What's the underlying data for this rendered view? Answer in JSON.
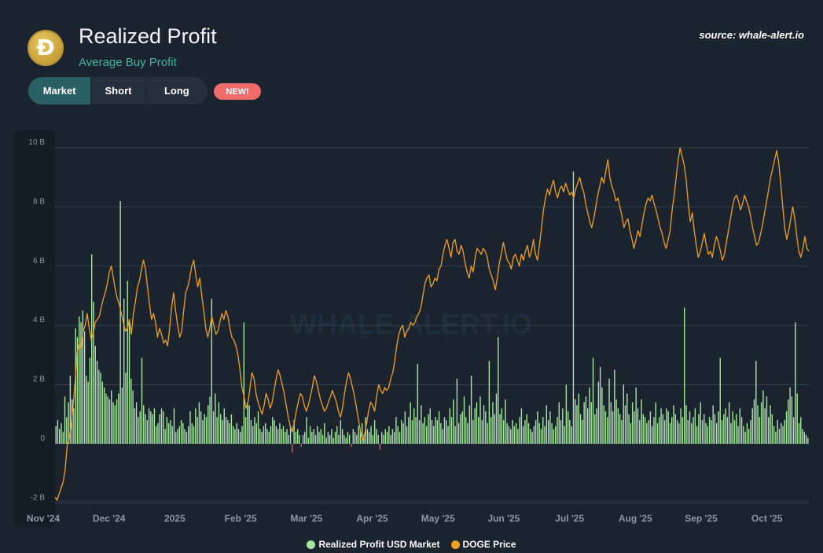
{
  "header": {
    "title": "Realized Profit",
    "subtitle": "Average Buy Profit",
    "source": "source: whale-alert.io",
    "logo_glyph": "Ð"
  },
  "tabs": [
    {
      "label": "Market",
      "active": true
    },
    {
      "label": "Short",
      "active": false
    },
    {
      "label": "Long",
      "active": false
    }
  ],
  "badge": "NEW!",
  "watermark": "WHALE-ALERT.IO",
  "colors": {
    "profit_bar": "#a6e6a1",
    "loss_bar": "#e05563",
    "price_line": "#f0a020",
    "grid": "#34404c",
    "axis_text": "#8d98a5"
  },
  "chart_data": {
    "type": "bar",
    "yticks": [
      "-2 B",
      "0",
      "2 B",
      "4 B",
      "6 B",
      "8 B",
      "10 B"
    ],
    "ylim": [
      -2,
      10
    ],
    "xlabels": [
      "Nov '24",
      "Dec '24",
      "2025",
      "Feb '25",
      "Mar '25",
      "Apr '25",
      "May '25",
      "Jun '25",
      "Jul '25",
      "Aug '25",
      "Sep '25",
      "Oct '25"
    ],
    "series": [
      {
        "name": "Realized Profit USD Market",
        "unit": "B USD",
        "values": [
          0.6,
          0.8,
          0.5,
          0.7,
          0.4,
          1.6,
          0.9,
          1.4,
          2.3,
          1.5,
          1.2,
          3.9,
          3.6,
          4.3,
          4.1,
          4.5,
          3.8,
          2.3,
          2.1,
          2.9,
          6.4,
          4.8,
          3.3,
          2.8,
          2.5,
          2.4,
          2.1,
          1.9,
          1.7,
          1.6,
          1.5,
          1.8,
          1.4,
          1.3,
          1.5,
          1.7,
          8.2,
          1.9,
          4.9,
          2.4,
          5.5,
          4.2,
          2.2,
          1.8,
          1.2,
          1.4,
          0.9,
          1.1,
          2.9,
          1.3,
          1.0,
          0.8,
          1.2,
          1.1,
          1.0,
          1.2,
          0.6,
          0.7,
          1.0,
          1.2,
          1.1,
          0.5,
          0.9,
          0.7,
          0.8,
          0.6,
          1.2,
          0.4,
          0.5,
          0.6,
          0.8,
          0.7,
          0.5,
          0.4,
          0.6,
          1.1,
          0.7,
          0.6,
          1.2,
          0.9,
          1.4,
          1.1,
          0.8,
          1.0,
          0.9,
          1.3,
          1.6,
          4.9,
          1.1,
          1.7,
          0.9,
          1.4,
          1.0,
          0.8,
          1.2,
          0.9,
          0.8,
          0.7,
          1.0,
          0.6,
          0.5,
          0.7,
          0.5,
          0.4,
          0.6,
          4.1,
          0.9,
          1.4,
          1.3,
          0.8,
          0.6,
          0.9,
          0.7,
          1.1,
          0.5,
          0.4,
          0.6,
          0.7,
          0.5,
          0.4,
          0.6,
          0.9,
          0.8,
          0.6,
          0.5,
          0.7,
          0.5,
          0.6,
          0.4,
          0.5,
          0.3,
          0.6,
          -0.3,
          0.8,
          0.4,
          0.5,
          0.3,
          -0.1,
          0.3,
          0.4,
          0.9,
          0.2,
          0.6,
          0.4,
          0.5,
          0.3,
          0.6,
          0.4,
          0.5,
          0.3,
          0.7,
          0.2,
          0.4,
          0.3,
          0.5,
          0.2,
          0.4,
          0.6,
          0.3,
          0.8,
          0.5,
          0.3,
          0.2,
          0.4,
          0.3,
          -0.1,
          0.5,
          0.4,
          0.3,
          0.6,
          0.4,
          0.7,
          0.3,
          0.9,
          0.5,
          0.4,
          0.6,
          0.3,
          0.8,
          0.5,
          0.3,
          -0.2,
          0.4,
          0.3,
          0.5,
          0.4,
          0.6,
          0.3,
          0.5,
          0.4,
          0.9,
          0.6,
          0.4,
          0.8,
          0.7,
          1.1,
          0.6,
          0.9,
          1.4,
          0.8,
          1.2,
          0.9,
          2.7,
          0.8,
          1.3,
          0.7,
          0.9,
          0.6,
          1.0,
          1.2,
          0.8,
          0.6,
          0.9,
          0.8,
          1.1,
          0.7,
          0.5,
          0.9,
          0.8,
          0.6,
          1.2,
          0.9,
          1.5,
          0.6,
          2.2,
          0.7,
          1.0,
          1.1,
          1.6,
          0.9,
          0.7,
          1.3,
          2.3,
          0.8,
          1.2,
          1.4,
          0.9,
          1.6,
          0.8,
          1.3,
          1.1,
          0.7,
          2.8,
          0.9,
          1.4,
          1.0,
          1.7,
          3.6,
          1.0,
          1.2,
          0.8,
          1.5,
          0.7,
          0.6,
          0.5,
          0.8,
          0.6,
          0.7,
          0.5,
          0.9,
          1.2,
          0.6,
          0.8,
          1.0,
          0.7,
          0.5,
          0.4,
          0.6,
          0.8,
          1.1,
          0.7,
          0.5,
          0.9,
          0.6,
          1.3,
          0.8,
          1.1,
          0.7,
          0.5,
          0.6,
          0.9,
          1.4,
          0.8,
          1.2,
          0.6,
          2.0,
          1.1,
          0.8,
          0.6,
          9.2,
          1.5,
          1.3,
          1.7,
          1.0,
          0.8,
          1.4,
          1.6,
          1.2,
          1.9,
          1.4,
          2.9,
          1.0,
          1.2,
          2.1,
          2.6,
          1.9,
          1.3,
          1.1,
          0.9,
          2.2,
          1.4,
          1.1,
          2.5,
          1.5,
          1.2,
          1.0,
          0.8,
          2.0,
          1.3,
          1.7,
          1.0,
          0.7,
          1.4,
          1.1,
          1.9,
          1.2,
          0.8,
          1.5,
          1.0,
          0.9,
          0.7,
          0.8,
          1.1,
          0.6,
          0.9,
          1.4,
          0.7,
          0.9,
          1.2,
          1.0,
          0.8,
          1.2,
          1.1,
          0.7,
          0.9,
          1.3,
          1.0,
          0.8,
          0.7,
          1.2,
          0.9,
          4.6,
          1.3,
          0.8,
          1.1,
          0.7,
          0.9,
          1.2,
          0.6,
          1.0,
          1.4,
          0.8,
          1.0,
          0.7,
          0.6,
          0.9,
          0.8,
          1.3,
          1.0,
          0.7,
          1.1,
          2.9,
          0.8,
          1.0,
          1.2,
          0.9,
          1.4,
          0.7,
          1.1,
          0.8,
          1.0,
          0.6,
          1.2,
          0.9,
          0.6,
          0.4,
          0.7,
          0.5,
          0.8,
          1.2,
          1.5,
          2.8,
          1.3,
          0.9,
          1.4,
          1.8,
          1.2,
          1.6,
          0.9,
          1.3,
          1.0,
          0.6,
          0.4,
          0.8,
          0.5,
          0.7,
          0.6,
          0.8,
          1.1,
          1.5,
          1.9,
          1.6,
          0.9,
          4.1,
          1.7,
          0.7,
          0.9,
          0.5,
          0.4,
          0.3,
          0.2
        ]
      },
      {
        "name": "DOGE Price",
        "values": [
          -1.8,
          -1.9,
          -1.7,
          -1.5,
          -1.3,
          -0.9,
          -0.1,
          0.2,
          0.6,
          1.3,
          2.1,
          3.1,
          3.4,
          3.2,
          3.8,
          4.0,
          4.4,
          3.9,
          3.5,
          3.7,
          4.1,
          4.2,
          4.3,
          4.6,
          4.9,
          5.1,
          5.4,
          5.8,
          6.0,
          5.6,
          5.2,
          4.9,
          4.7,
          4.4,
          4.1,
          3.8,
          3.9,
          4.2,
          3.7,
          4.4,
          4.8,
          5.3,
          5.5,
          5.9,
          6.2,
          5.9,
          5.3,
          4.7,
          4.2,
          4.4,
          4.1,
          3.6,
          3.9,
          3.7,
          3.4,
          3.5,
          3.3,
          3.9,
          4.6,
          5.1,
          4.5,
          4.0,
          3.6,
          3.8,
          4.5,
          5.1,
          5.3,
          5.6,
          6.0,
          6.2,
          5.7,
          5.3,
          5.6,
          5.0,
          4.5,
          3.9,
          3.6,
          3.9,
          4.3,
          4.0,
          3.7,
          3.8,
          4.1,
          4.4,
          4.2,
          4.5,
          4.3,
          3.9,
          3.6,
          3.5,
          3.3,
          3.0,
          2.5,
          1.9,
          1.6,
          1.2,
          1.4,
          1.9,
          2.4,
          2.2,
          1.7,
          1.4,
          1.2,
          1.0,
          1.3,
          1.7,
          1.5,
          1.2,
          1.4,
          1.8,
          2.2,
          2.5,
          2.3,
          2.0,
          1.7,
          1.3,
          0.9,
          0.6,
          0.4,
          0.7,
          1.1,
          1.4,
          1.7,
          1.6,
          1.3,
          1.1,
          1.3,
          1.6,
          1.9,
          2.3,
          2.1,
          1.8,
          1.5,
          1.3,
          1.1,
          1.2,
          1.4,
          1.6,
          1.8,
          1.6,
          1.4,
          1.1,
          0.9,
          1.2,
          1.7,
          2.1,
          2.4,
          2.2,
          1.9,
          1.6,
          1.2,
          0.8,
          0.4,
          0.1,
          0.3,
          0.7,
          1.1,
          1.4,
          1.3,
          1.1,
          1.6,
          2.0,
          1.8,
          1.7,
          1.9,
          1.8,
          1.9,
          2.2,
          2.4,
          2.8,
          3.3,
          3.7,
          3.9,
          4.0,
          3.6,
          3.8,
          3.9,
          4.1,
          4.0,
          4.1,
          4.3,
          4.4,
          4.6,
          5.0,
          5.4,
          5.6,
          5.7,
          5.3,
          5.4,
          5.6,
          5.5,
          5.9,
          6.0,
          6.4,
          6.7,
          6.9,
          6.6,
          6.3,
          6.8,
          6.9,
          6.5,
          6.4,
          6.7,
          6.5,
          6.1,
          5.8,
          5.6,
          6.0,
          5.8,
          6.3,
          6.6,
          6.5,
          6.4,
          6.6,
          6.5,
          6.3,
          5.9,
          5.7,
          5.5,
          5.2,
          5.6,
          6.1,
          6.4,
          6.8,
          6.5,
          6.2,
          6.1,
          5.9,
          6.3,
          6.4,
          6.2,
          6.0,
          6.4,
          6.2,
          6.5,
          6.7,
          6.3,
          6.5,
          6.9,
          6.4,
          6.2,
          6.7,
          7.3,
          7.9,
          8.3,
          8.6,
          8.4,
          8.7,
          8.9,
          8.5,
          8.3,
          8.6,
          8.7,
          8.5,
          8.8,
          8.6,
          8.4,
          8.5,
          8.3,
          8.6,
          8.8,
          9.0,
          8.7,
          8.5,
          8.1,
          7.8,
          7.5,
          7.3,
          7.6,
          8.0,
          8.4,
          8.7,
          9.0,
          8.8,
          9.2,
          9.6,
          9.0,
          8.7,
          8.5,
          8.2,
          8.3,
          8.0,
          7.7,
          7.3,
          7.5,
          7.6,
          7.2,
          6.9,
          6.6,
          6.9,
          7.2,
          7.0,
          7.4,
          7.8,
          8.1,
          8.3,
          8.2,
          8.4,
          8.1,
          7.9,
          7.6,
          7.3,
          7.1,
          6.8,
          6.6,
          6.9,
          7.2,
          7.9,
          8.4,
          9.0,
          9.6,
          10.0,
          9.7,
          9.4,
          8.9,
          8.1,
          7.5,
          7.8,
          7.2,
          6.7,
          6.3,
          6.5,
          6.8,
          7.1,
          6.7,
          6.4,
          6.5,
          6.3,
          6.7,
          7.0,
          6.8,
          6.5,
          6.2,
          6.4,
          6.8,
          7.2,
          7.6,
          8.0,
          8.3,
          8.4,
          8.2,
          7.9,
          8.1,
          8.4,
          8.2,
          8.0,
          7.7,
          7.3,
          7.0,
          6.7,
          6.8,
          7.1,
          7.4,
          7.8,
          8.2,
          8.6,
          9.0,
          9.3,
          9.6,
          9.9,
          9.5,
          8.8,
          8.0,
          7.3,
          6.9,
          7.2,
          7.6,
          8.0,
          7.6,
          7.0,
          6.5,
          6.3,
          6.6,
          7.0,
          6.6,
          6.5
        ]
      }
    ]
  }
}
